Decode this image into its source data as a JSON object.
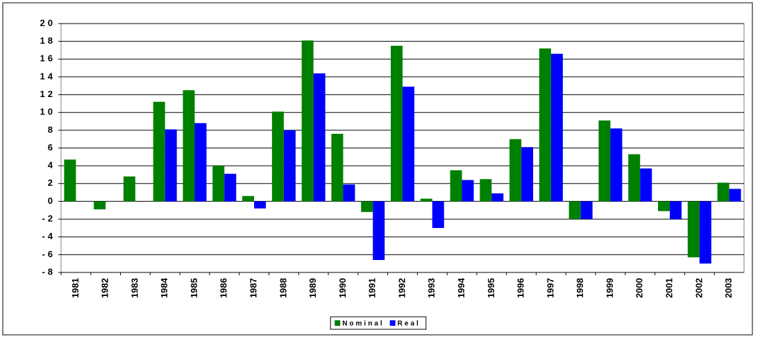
{
  "chart_data": {
    "type": "bar",
    "categories": [
      "1981",
      "1982",
      "1983",
      "1984",
      "1985",
      "1986",
      "1987",
      "1988",
      "1989",
      "1990",
      "1991",
      "1992",
      "1993",
      "1994",
      "1995",
      "1996",
      "1997",
      "1998",
      "1999",
      "2000",
      "2001",
      "2002",
      "2003"
    ],
    "series": [
      {
        "name": "Nominal",
        "color": "#008000",
        "values": [
          4.7,
          -0.9,
          2.8,
          11.2,
          12.5,
          4.0,
          0.6,
          10.1,
          18.1,
          7.6,
          -1.2,
          17.5,
          0.3,
          3.5,
          2.5,
          7.0,
          17.2,
          -2.0,
          9.1,
          5.3,
          -1.1,
          -6.3,
          2.1
        ]
      },
      {
        "name": "Real",
        "color": "#0000ff",
        "values": [
          null,
          null,
          null,
          8.1,
          8.8,
          3.1,
          -0.8,
          8.0,
          14.4,
          1.9,
          -6.6,
          12.9,
          -3.0,
          2.4,
          0.9,
          6.1,
          16.6,
          -2.0,
          8.2,
          3.7,
          -2.0,
          -7.0,
          1.4
        ]
      }
    ],
    "ylim": [
      -8,
      20
    ],
    "yticks": [
      -8,
      -6,
      -4,
      -2,
      0,
      2,
      4,
      6,
      8,
      10,
      12,
      14,
      16,
      18,
      20
    ],
    "grid": true,
    "legend": "bottom"
  }
}
